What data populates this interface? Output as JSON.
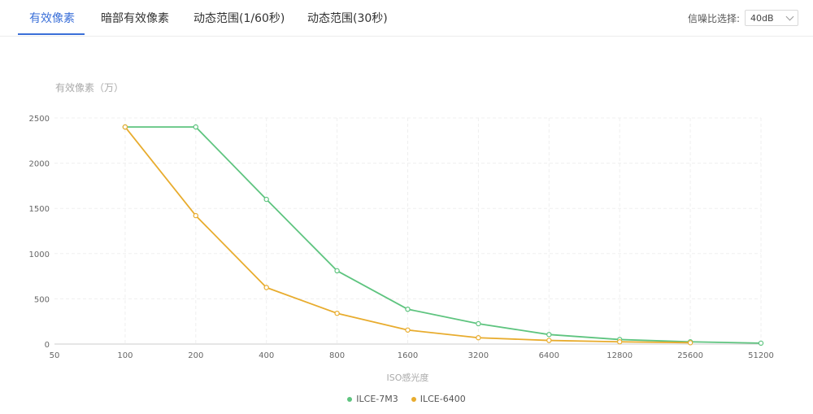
{
  "tabs": [
    {
      "label": "有效像素",
      "active": true
    },
    {
      "label": "暗部有效像素",
      "active": false
    },
    {
      "label": "动态范围(1/60秒)",
      "active": false
    },
    {
      "label": "动态范围(30秒)",
      "active": false
    }
  ],
  "snr": {
    "label": "信噪比选择:",
    "value": "40dB"
  },
  "chart_data": {
    "type": "line",
    "title": "",
    "ylabel": "有效像素（万）",
    "xlabel": "ISO感光度",
    "categories": [
      "50",
      "100",
      "200",
      "400",
      "800",
      "1600",
      "3200",
      "6400",
      "12800",
      "25600",
      "51200"
    ],
    "ylim": [
      0,
      2500
    ],
    "yticks": [
      0,
      500,
      1000,
      1500,
      2000,
      2500
    ],
    "grid": true,
    "legend_position": "bottom",
    "series": [
      {
        "name": "ILCE-7M3",
        "color": "#5ec47f",
        "values": [
          null,
          2400,
          2400,
          1600,
          810,
          385,
          225,
          105,
          50,
          25,
          10
        ]
      },
      {
        "name": "ILCE-6400",
        "color": "#e8ac2e",
        "values": [
          null,
          2400,
          1420,
          625,
          340,
          155,
          70,
          40,
          25,
          15,
          null
        ]
      }
    ]
  }
}
